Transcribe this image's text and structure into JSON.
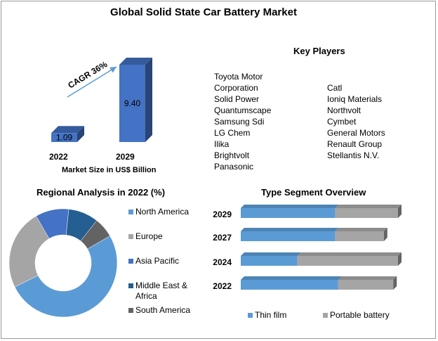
{
  "title": "Global Solid State Car Battery Market",
  "market_size": {
    "categories": [
      "2022",
      "2029"
    ],
    "values": [
      "1.09",
      "9.40"
    ],
    "xlabel": "Market Size in US$ Billion",
    "annotation": "CAGR 36%",
    "bar_color": "#4472c4"
  },
  "key_players": {
    "title": "Key Players",
    "column1": [
      "Toyota Motor",
      "Corporation",
      "Solid Power",
      "Quantumscape",
      "Samsung Sdi",
      "LG Chem",
      "Ilika",
      "Brightvolt",
      "Panasonic"
    ],
    "column2": [
      "Catl",
      "Ioniq Materials",
      "Northvolt",
      "Cymbet",
      "General Motors",
      "Renault Group",
      "Stellantis N.V."
    ]
  },
  "chart_data": [
    {
      "type": "bar",
      "categories": [
        "2022",
        "2029"
      ],
      "values": [
        1.09,
        9.4
      ],
      "xlabel": "Market Size in US$ Billion",
      "annotation": "CAGR 36%"
    },
    {
      "type": "pie",
      "title": "Regional Analysis in 2022 (%)",
      "labels": [
        "North America",
        "Europe",
        "Asia Pacific",
        "Middle East & Africa",
        "South America"
      ],
      "values": [
        51,
        24,
        10,
        9,
        6
      ],
      "colors": [
        "#5b9bd5",
        "#a5a5a5",
        "#4472c4",
        "#255e91",
        "#636363"
      ],
      "donut": true,
      "legend": "right"
    },
    {
      "type": "bar",
      "orientation": "horizontal",
      "stacked": true,
      "title": "Type Segment Overview",
      "categories": [
        "2029",
        "2027",
        "2024",
        "2022"
      ],
      "series": [
        {
          "name": "Thin film",
          "values": [
            60,
            60,
            36,
            62
          ]
        },
        {
          "name": "Portable battery",
          "values": [
            40,
            31,
            64,
            35
          ]
        }
      ],
      "colors": [
        "#5b9bd5",
        "#a5a5a5"
      ],
      "legend": "bottom"
    }
  ],
  "regional": {
    "title": "Regional Analysis in 2022 (%)",
    "legend": [
      "North America",
      "Europe",
      "Asia Pacific",
      "Middle East &",
      "Africa",
      "South America"
    ]
  },
  "type_segment": {
    "title": "Type Segment Overview",
    "legend": [
      "Thin film",
      "Portable battery"
    ]
  }
}
